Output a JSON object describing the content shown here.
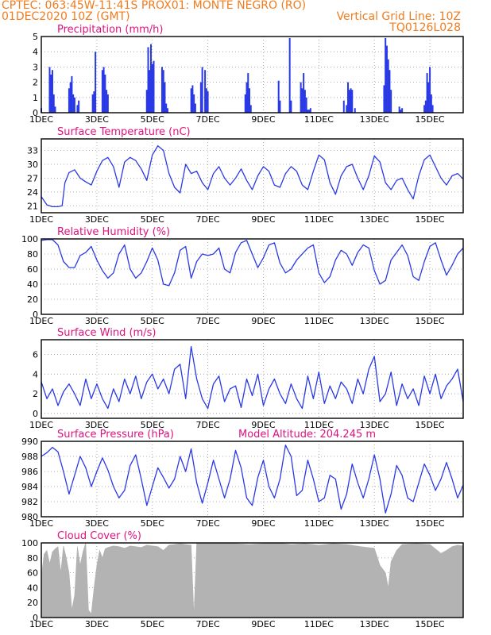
{
  "header": {
    "line1_left": "CPTEC:   063:45W-11:41S   PROX01: MONTE NEGRO (RO)",
    "line2_left": "01DEC2020 10Z (GMT)",
    "grid_note": "Vertical Grid Line: 10Z",
    "code": "TQ0126L028"
  },
  "colors": {
    "header": "#f07c1e",
    "title": "#e0117f",
    "series": "#2a39e6",
    "cloud": "#b3b3b3"
  },
  "x_tick_labels": [
    "1DEC",
    "3DEC",
    "5DEC",
    "7DEC",
    "9DEC",
    "11DEC",
    "13DEC",
    "15DEC"
  ],
  "chart_data": [
    {
      "type": "bar",
      "title": "Precipitation (mm/h)",
      "ylim": [
        0,
        5
      ],
      "yticks": [
        "0",
        "1",
        "2",
        "3",
        "4",
        "5"
      ],
      "x": [
        0.0,
        0.3,
        0.35,
        0.4,
        0.45,
        0.5,
        1.0,
        1.05,
        1.1,
        1.15,
        1.2,
        1.3,
        1.35,
        1.85,
        1.9,
        1.95,
        2.2,
        2.25,
        2.3,
        2.35,
        2.4,
        3.8,
        3.85,
        3.9,
        3.95,
        4.0,
        4.05,
        4.35,
        4.4,
        4.45,
        4.5,
        4.55,
        5.4,
        5.45,
        5.5,
        5.55,
        5.75,
        5.8,
        5.9,
        5.95,
        6.0,
        7.35,
        7.4,
        7.45,
        7.5,
        7.55,
        8.55,
        8.6,
        8.95,
        9.0,
        9.35,
        9.4,
        9.45,
        9.5,
        9.55,
        9.6,
        9.65,
        9.7,
        10.9,
        11.0,
        11.05,
        11.1,
        11.15,
        11.2,
        11.3,
        12.35,
        12.4,
        12.45,
        12.5,
        12.55,
        12.6,
        12.9,
        12.95,
        13.0,
        13.8,
        13.85,
        13.9,
        13.95,
        14.0,
        14.05,
        14.1
      ],
      "values": [
        0.3,
        3.0,
        2.5,
        2.8,
        1.2,
        0.4,
        1.6,
        2.0,
        2.4,
        1.2,
        1.0,
        0.5,
        0.8,
        1.2,
        1.4,
        4.0,
        2.8,
        3.0,
        2.5,
        1.5,
        1.2,
        1.5,
        4.3,
        2.8,
        4.5,
        3.2,
        3.4,
        3.0,
        2.8,
        2.0,
        0.6,
        0.3,
        1.6,
        1.8,
        1.2,
        0.6,
        2.0,
        3.0,
        2.8,
        1.6,
        1.4,
        1.2,
        2.0,
        2.6,
        1.6,
        0.5,
        2.1,
        0.8,
        4.9,
        0.8,
        2.0,
        1.6,
        2.6,
        1.5,
        1.0,
        0.2,
        0.2,
        0.3,
        0.8,
        0.5,
        2.0,
        1.5,
        1.6,
        1.5,
        0.3,
        1.8,
        4.9,
        4.4,
        3.5,
        2.8,
        1.5,
        0.4,
        0.2,
        0.3,
        0.5,
        0.8,
        2.6,
        2.0,
        3.0,
        1.2,
        0.5
      ]
    },
    {
      "type": "line",
      "title": "Surface Temperature (nC)",
      "ylim": [
        19.5,
        35.5
      ],
      "yticks": [
        "21",
        "24",
        "27",
        "30",
        "33"
      ],
      "x": [
        0.0,
        0.2,
        0.4,
        0.6,
        0.75,
        0.85,
        1.0,
        1.2,
        1.4,
        1.6,
        1.8,
        2.0,
        2.2,
        2.4,
        2.6,
        2.8,
        3.0,
        3.2,
        3.4,
        3.6,
        3.8,
        4.0,
        4.2,
        4.4,
        4.6,
        4.8,
        5.0,
        5.2,
        5.4,
        5.6,
        5.8,
        6.0,
        6.2,
        6.4,
        6.6,
        6.8,
        7.0,
        7.2,
        7.4,
        7.6,
        7.8,
        8.0,
        8.2,
        8.4,
        8.6,
        8.8,
        9.0,
        9.2,
        9.4,
        9.6,
        9.8,
        10.0,
        10.2,
        10.4,
        10.6,
        10.8,
        11.0,
        11.2,
        11.4,
        11.6,
        11.8,
        12.0,
        12.2,
        12.4,
        12.6,
        12.8,
        13.0,
        13.2,
        13.4,
        13.6,
        13.8,
        14.0,
        14.2,
        14.4,
        14.6,
        14.8,
        15.0,
        15.2
      ],
      "values": [
        23.0,
        21.2,
        20.8,
        20.8,
        21.0,
        26.0,
        28.2,
        28.8,
        27.0,
        26.2,
        25.5,
        28.5,
        30.8,
        31.5,
        29.5,
        25.0,
        30.5,
        31.5,
        30.8,
        29.0,
        26.5,
        32.0,
        34.0,
        33.0,
        28.0,
        25.0,
        23.8,
        30.0,
        28.0,
        28.5,
        26.0,
        24.5,
        28.0,
        29.5,
        27.0,
        25.5,
        27.0,
        29.0,
        26.5,
        24.5,
        27.5,
        29.5,
        28.5,
        25.5,
        25.0,
        28.0,
        29.5,
        28.5,
        25.5,
        24.5,
        28.5,
        32.0,
        31.0,
        26.0,
        23.5,
        27.5,
        29.5,
        30.0,
        27.0,
        24.5,
        27.5,
        31.8,
        30.5,
        26.0,
        24.5,
        26.5,
        27.0,
        24.5,
        22.5,
        27.5,
        31.0,
        32.0,
        29.5,
        27.0,
        25.5,
        27.5,
        28.0,
        26.8
      ]
    },
    {
      "type": "line",
      "title": "Relative Humidity (%)",
      "ylim": [
        0,
        100
      ],
      "yticks": [
        "0",
        "20",
        "40",
        "60",
        "80",
        "100"
      ],
      "x": [
        0.0,
        0.2,
        0.4,
        0.6,
        0.8,
        1.0,
        1.2,
        1.4,
        1.6,
        1.8,
        2.0,
        2.2,
        2.4,
        2.6,
        2.8,
        3.0,
        3.2,
        3.4,
        3.6,
        3.8,
        4.0,
        4.2,
        4.4,
        4.6,
        4.8,
        5.0,
        5.2,
        5.4,
        5.6,
        5.8,
        6.0,
        6.2,
        6.4,
        6.6,
        6.8,
        7.0,
        7.2,
        7.4,
        7.6,
        7.8,
        8.0,
        8.2,
        8.4,
        8.6,
        8.8,
        9.0,
        9.2,
        9.4,
        9.6,
        9.8,
        10.0,
        10.2,
        10.4,
        10.6,
        10.8,
        11.0,
        11.2,
        11.4,
        11.6,
        11.8,
        12.0,
        12.2,
        12.4,
        12.6,
        12.8,
        13.0,
        13.2,
        13.4,
        13.6,
        13.8,
        14.0,
        14.2,
        14.4,
        14.6,
        14.8,
        15.0,
        15.2
      ],
      "values": [
        98,
        99,
        99,
        92,
        70,
        62,
        62,
        78,
        82,
        90,
        72,
        58,
        48,
        55,
        80,
        92,
        60,
        48,
        55,
        70,
        88,
        72,
        40,
        38,
        55,
        85,
        90,
        48,
        70,
        80,
        78,
        80,
        88,
        60,
        55,
        82,
        95,
        98,
        80,
        62,
        75,
        92,
        95,
        68,
        55,
        60,
        72,
        80,
        88,
        92,
        55,
        42,
        50,
        72,
        85,
        80,
        65,
        82,
        92,
        88,
        58,
        40,
        45,
        72,
        82,
        92,
        78,
        50,
        45,
        70,
        90,
        95,
        72,
        52,
        65,
        80,
        88
      ]
    },
    {
      "type": "line",
      "title": "Surface Wind (m/s)",
      "ylim": [
        -0.5,
        7.5
      ],
      "yticks": [
        "0",
        "2",
        "4",
        "6"
      ],
      "x": [
        0.0,
        0.2,
        0.4,
        0.6,
        0.8,
        1.0,
        1.2,
        1.4,
        1.6,
        1.8,
        2.0,
        2.2,
        2.4,
        2.6,
        2.8,
        3.0,
        3.2,
        3.4,
        3.6,
        3.8,
        4.0,
        4.2,
        4.4,
        4.6,
        4.8,
        5.0,
        5.2,
        5.4,
        5.6,
        5.8,
        6.0,
        6.2,
        6.4,
        6.6,
        6.8,
        7.0,
        7.2,
        7.4,
        7.6,
        7.8,
        8.0,
        8.2,
        8.4,
        8.6,
        8.8,
        9.0,
        9.2,
        9.4,
        9.6,
        9.8,
        10.0,
        10.2,
        10.4,
        10.6,
        10.8,
        11.0,
        11.2,
        11.4,
        11.6,
        11.8,
        12.0,
        12.2,
        12.4,
        12.6,
        12.8,
        13.0,
        13.2,
        13.4,
        13.6,
        13.8,
        14.0,
        14.2,
        14.4,
        14.6,
        14.8,
        15.0,
        15.2
      ],
      "values": [
        3.2,
        1.5,
        2.5,
        0.8,
        2.2,
        3.0,
        2.0,
        0.8,
        3.5,
        1.5,
        3.0,
        1.5,
        0.5,
        2.5,
        1.2,
        3.5,
        2.0,
        3.8,
        1.5,
        3.2,
        4.0,
        2.5,
        3.5,
        2.0,
        4.5,
        5.0,
        1.5,
        6.8,
        3.5,
        1.5,
        0.5,
        3.0,
        3.8,
        1.2,
        2.5,
        2.8,
        0.6,
        3.5,
        1.8,
        4.0,
        0.8,
        2.5,
        3.5,
        2.0,
        1.0,
        3.0,
        1.5,
        0.5,
        3.8,
        1.5,
        4.2,
        1.0,
        2.8,
        1.5,
        3.2,
        2.5,
        1.0,
        3.5,
        2.0,
        4.5,
        5.8,
        1.2,
        2.0,
        4.2,
        0.8,
        3.0,
        1.5,
        2.5,
        0.8,
        3.8,
        2.0,
        4.0,
        1.5,
        2.8,
        3.5,
        4.5,
        1.2
      ]
    },
    {
      "type": "line",
      "title": "Surface Pressure (hPa)",
      "note": "Model Altitude: 204.245  m",
      "ylim": [
        980,
        990
      ],
      "yticks": [
        "980",
        "982",
        "984",
        "986",
        "988",
        "990"
      ],
      "x": [
        0.0,
        0.2,
        0.4,
        0.6,
        0.8,
        1.0,
        1.2,
        1.4,
        1.6,
        1.8,
        2.0,
        2.2,
        2.4,
        2.6,
        2.8,
        3.0,
        3.2,
        3.4,
        3.6,
        3.8,
        4.0,
        4.2,
        4.4,
        4.6,
        4.8,
        5.0,
        5.2,
        5.4,
        5.6,
        5.8,
        6.0,
        6.2,
        6.4,
        6.6,
        6.8,
        7.0,
        7.2,
        7.4,
        7.6,
        7.8,
        8.0,
        8.2,
        8.4,
        8.6,
        8.8,
        9.0,
        9.2,
        9.4,
        9.6,
        9.8,
        10.0,
        10.2,
        10.4,
        10.6,
        10.8,
        11.0,
        11.2,
        11.4,
        11.6,
        11.8,
        12.0,
        12.2,
        12.4,
        12.6,
        12.8,
        13.0,
        13.2,
        13.4,
        13.6,
        13.8,
        14.0,
        14.2,
        14.4,
        14.6,
        14.8,
        15.0,
        15.2
      ],
      "values": [
        988.0,
        988.5,
        989.2,
        988.6,
        986.0,
        983.0,
        985.5,
        988.0,
        986.5,
        984.0,
        986.0,
        987.8,
        986.2,
        984.0,
        982.5,
        983.5,
        986.8,
        988.2,
        985.0,
        981.5,
        984.0,
        986.5,
        985.2,
        983.8,
        985.0,
        988.0,
        986.0,
        989.0,
        984.5,
        981.8,
        984.5,
        987.5,
        985.0,
        982.5,
        985.0,
        988.8,
        986.5,
        982.5,
        981.5,
        985.2,
        987.5,
        984.0,
        982.5,
        985.0,
        989.5,
        988.0,
        982.8,
        983.5,
        987.5,
        985.0,
        982.0,
        982.5,
        985.5,
        985.0,
        981.0,
        983.0,
        987.0,
        984.5,
        982.5,
        985.0,
        988.2,
        985.0,
        980.5,
        983.0,
        986.8,
        985.5,
        982.5,
        982.0,
        984.5,
        987.0,
        985.5,
        983.5,
        985.0,
        987.2,
        985.0,
        982.5,
        984.2
      ]
    },
    {
      "type": "area",
      "title": "Cloud Cover (%)",
      "ylim": [
        0,
        100
      ],
      "yticks": [
        "0",
        "20",
        "40",
        "60",
        "80",
        "100"
      ],
      "x": [
        0.0,
        0.1,
        0.2,
        0.3,
        0.4,
        0.5,
        0.6,
        0.7,
        0.8,
        0.9,
        1.0,
        1.1,
        1.2,
        1.3,
        1.4,
        1.5,
        1.6,
        1.7,
        1.8,
        1.9,
        2.0,
        2.1,
        2.2,
        2.3,
        2.4,
        2.6,
        2.8,
        3.0,
        3.2,
        3.4,
        3.6,
        3.8,
        4.0,
        4.2,
        4.4,
        4.6,
        4.8,
        5.0,
        5.2,
        5.4,
        5.5,
        5.6,
        5.8,
        6.0,
        6.5,
        7.0,
        7.5,
        8.0,
        8.5,
        9.0,
        9.5,
        10.0,
        10.5,
        11.0,
        11.5,
        12.0,
        12.2,
        12.4,
        12.5,
        12.6,
        12.8,
        13.0,
        13.5,
        14.0,
        14.2,
        14.4,
        14.6,
        14.8,
        15.0,
        15.2
      ],
      "values": [
        55,
        85,
        90,
        72,
        88,
        92,
        95,
        60,
        96,
        80,
        60,
        10,
        30,
        95,
        70,
        88,
        100,
        10,
        5,
        40,
        70,
        90,
        80,
        92,
        94,
        96,
        95,
        93,
        96,
        95,
        94,
        97,
        96,
        95,
        90,
        97,
        98,
        99,
        98,
        97,
        2,
        100,
        99,
        99,
        100,
        99,
        98,
        99,
        100,
        98,
        99,
        97,
        99,
        98,
        95,
        93,
        70,
        60,
        40,
        75,
        90,
        98,
        99,
        98,
        92,
        86,
        90,
        95,
        97,
        96
      ]
    }
  ]
}
